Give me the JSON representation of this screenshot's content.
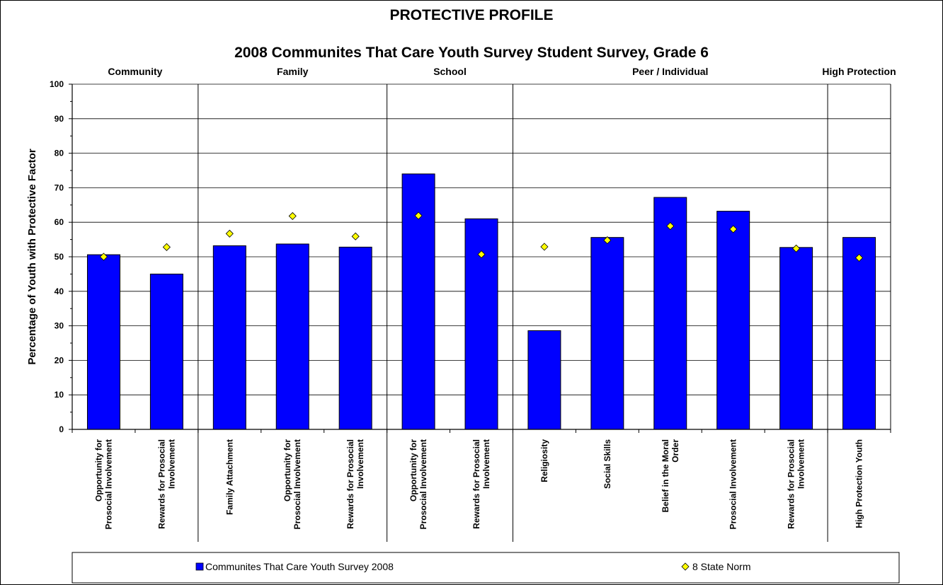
{
  "chart_data": {
    "type": "bar",
    "title": "PROTECTIVE PROFILE",
    "subtitle": "2008 Communites That Care Youth Survey Student Survey, Grade 6",
    "ylabel": "Percentage of Youth with Protective Factor",
    "ylim": [
      0,
      100
    ],
    "yticks": [
      "0",
      "10",
      "20",
      "30",
      "40",
      "50",
      "60",
      "70",
      "80",
      "90",
      "100"
    ],
    "grid": true,
    "legend_position": "bottom",
    "groups": [
      {
        "label": "Community",
        "start": 0,
        "count": 2
      },
      {
        "label": "Family",
        "start": 2,
        "count": 3
      },
      {
        "label": "School",
        "start": 5,
        "count": 2
      },
      {
        "label": "Peer / Individual",
        "start": 7,
        "count": 5
      },
      {
        "label": "High Protection",
        "start": 12,
        "count": 1
      }
    ],
    "categories": [
      [
        "Opportunity for",
        "Prosocial Involvement"
      ],
      [
        "Rewards for Prosocial",
        "Involvement"
      ],
      [
        "Family Attachment"
      ],
      [
        "Opportunity for",
        "Prosocial Involvement"
      ],
      [
        "Rewards for Prosocial",
        "Involvement"
      ],
      [
        "Opportunity for",
        "Prosocial Involvement"
      ],
      [
        "Rewards for Prosocial",
        "Involvement"
      ],
      [
        "Religiosity"
      ],
      [
        "Social Skills"
      ],
      [
        "Belief in the Moral",
        "Order"
      ],
      [
        "Prosocial Involvement"
      ],
      [
        "Rewards for Prosocial",
        "Involvement"
      ],
      [
        "High Protection Youth"
      ]
    ],
    "series": [
      {
        "name": "Communites That Care Youth Survey 2008",
        "kind": "bar",
        "color": "#0000ff",
        "values": [
          50.6,
          45.0,
          53.2,
          53.7,
          52.8,
          74.0,
          61.0,
          28.6,
          55.6,
          67.2,
          63.2,
          52.7,
          55.6
        ]
      },
      {
        "name": "8 State Norm",
        "kind": "marker",
        "color": "#ffff00",
        "values": [
          50.0,
          52.8,
          56.7,
          61.8,
          55.9,
          61.9,
          50.7,
          52.9,
          54.8,
          58.9,
          58.0,
          52.4,
          49.7
        ]
      }
    ]
  }
}
